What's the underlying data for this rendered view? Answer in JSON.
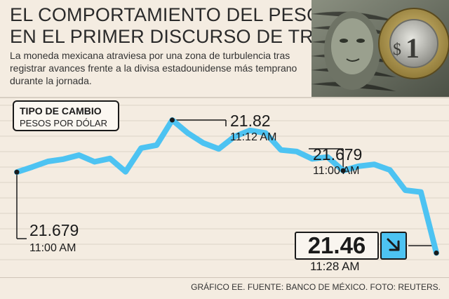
{
  "header": {
    "title_line1": "EL COMPORTAMIENTO DEL PESO",
    "title_line2": "EN EL PRIMER DISCURSO DE TRUMP",
    "subtitle": "La moneda mexicana atraviesa por una zona de turbulencia tras registrar avances frente a la divisa estadounidense más temprano durante la jornada."
  },
  "legend": {
    "title": "TIPO DE CAMBIO",
    "subtitle": "PESOS POR DÓLAR"
  },
  "annotations": {
    "start": {
      "value": "21.679",
      "time": "11:00 AM"
    },
    "peak": {
      "value": "21.82",
      "time": "11:12 AM"
    },
    "mid": {
      "value": "21.679",
      "time": "11:00 AM"
    },
    "last": {
      "value": "21.46",
      "time": "11:28 AM"
    }
  },
  "footer": "GRÁFICO EE. FUENTE: BANCO DE MÉXICO. FOTO: REUTERS.",
  "colors": {
    "line": "#4dc3f2",
    "grid": "#ddd3c6",
    "background": "#f4ece1"
  },
  "icons": {
    "arrow": "arrow-down-right-icon"
  },
  "chart_data": {
    "type": "line",
    "title": "TIPO DE CAMBIO",
    "ylabel": "PESOS POR DÓLAR",
    "ylim": [
      21.4,
      21.86
    ],
    "grid": true,
    "series": [
      {
        "values": [
          21.679,
          21.693,
          21.708,
          21.714,
          21.725,
          21.707,
          21.716,
          21.68,
          21.744,
          21.752,
          21.82,
          21.785,
          21.758,
          21.742,
          21.775,
          21.792,
          21.785,
          21.739,
          21.735,
          21.715,
          21.72,
          21.683,
          21.695,
          21.7,
          21.685,
          21.63,
          21.625,
          21.46
        ]
      }
    ]
  }
}
